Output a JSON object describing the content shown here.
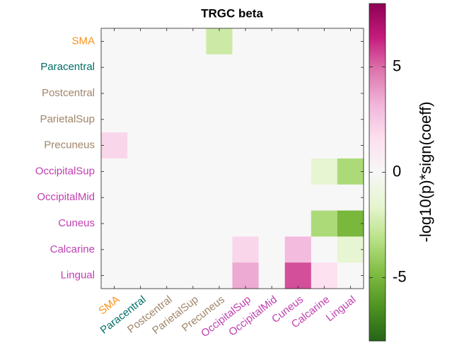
{
  "chart_data": {
    "type": "heatmap",
    "title": "TRGC beta",
    "rows": [
      "SMA",
      "Paracentral",
      "Postcentral",
      "ParietalSup",
      "Precuneus",
      "OccipitalSup",
      "OccipitalMid",
      "Cuneus",
      "Calcarine",
      "Lingual"
    ],
    "columns": [
      "SMA",
      "Paracentral",
      "Postcentral",
      "ParietalSup",
      "Precuneus",
      "OccipitalSup",
      "OccipitalMid",
      "Cuneus",
      "Calcarine",
      "Lingual"
    ],
    "label_colors": [
      "#f7941d",
      "#006e64",
      "#a0856a",
      "#a0856a",
      "#a0856a",
      "#c040b0",
      "#c040b0",
      "#c040b0",
      "#c040b0",
      "#c040b0"
    ],
    "z": [
      [
        0,
        0,
        0,
        0,
        -2.5,
        0,
        0,
        0,
        0,
        0
      ],
      [
        0,
        0,
        0,
        0,
        0,
        0,
        0,
        0,
        0,
        0
      ],
      [
        0,
        0,
        0,
        0,
        0,
        0,
        0,
        0,
        0,
        0
      ],
      [
        0,
        0,
        0,
        0,
        0,
        0,
        0,
        0,
        0,
        0
      ],
      [
        2,
        0,
        0,
        0,
        0,
        0,
        0,
        0,
        0,
        0
      ],
      [
        0,
        0,
        0,
        0,
        0,
        0,
        0,
        0,
        -1.5,
        -3.5
      ],
      [
        0,
        0,
        0,
        0,
        0,
        0,
        0,
        0,
        0,
        0
      ],
      [
        0,
        0,
        0,
        0,
        0,
        0,
        0,
        0,
        -3.5,
        -5
      ],
      [
        0,
        0,
        0,
        0,
        0,
        2,
        0,
        3,
        0,
        -1.5
      ],
      [
        0,
        0,
        0,
        0,
        0,
        3.5,
        0,
        5.5,
        1.5,
        0
      ]
    ],
    "colorbar_label": "-log10(p)*sign(coeff)",
    "clim": [
      -8,
      8
    ],
    "cticks": [
      -5,
      0,
      5
    ],
    "colormap": [
      "#276419",
      "#4d9221",
      "#7fbc41",
      "#b8e186",
      "#e6f5d0",
      "#f7f7f7",
      "#fde0ef",
      "#f1b6da",
      "#de77ae",
      "#c51b7d",
      "#8e0152"
    ]
  }
}
